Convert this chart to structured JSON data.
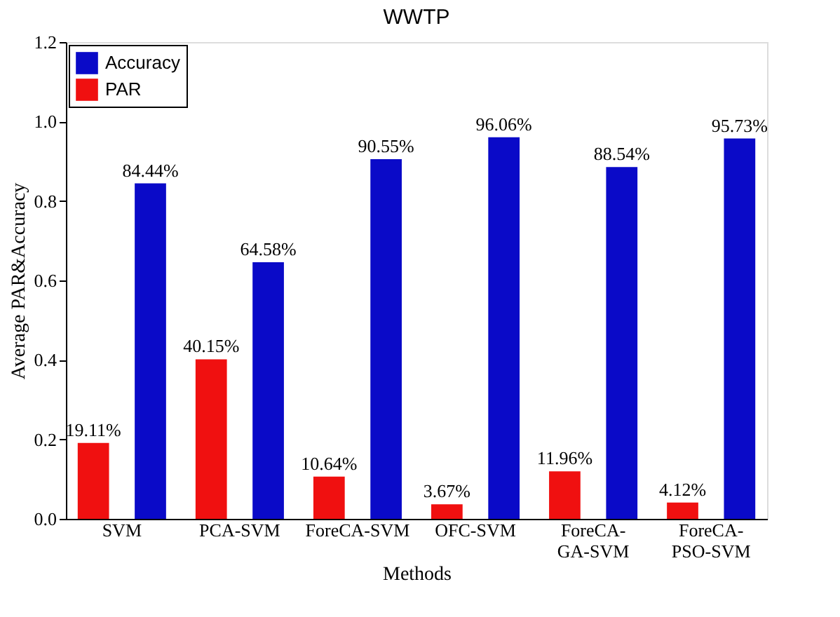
{
  "chart_data": {
    "type": "bar",
    "title": "WWTP",
    "xlabel": "Methods",
    "ylabel": "Average PAR&Accuracy",
    "categories": [
      "SVM",
      "PCA-SVM",
      "ForeCA-SVM",
      "OFC-SVM",
      "ForeCA-GA-SVM",
      "ForeCA-PSO-SVM"
    ],
    "series": [
      {
        "name": "Accuracy",
        "color": "#0a0ac8",
        "values": [
          0.8444,
          0.6458,
          0.9055,
          0.9606,
          0.8854,
          0.9573
        ],
        "value_labels": [
          "84.44%",
          "64.58%",
          "90.55%",
          "96.06%",
          "88.54%",
          "95.73%"
        ]
      },
      {
        "name": "PAR",
        "color": "#f01010",
        "values": [
          0.1911,
          0.4015,
          0.1064,
          0.0367,
          0.1196,
          0.0412
        ],
        "value_labels": [
          "19.11%",
          "40.15%",
          "10.64%",
          "3.67%",
          "11.96%",
          "4.12%"
        ]
      }
    ],
    "ylim": [
      0,
      1.2
    ],
    "yticks": [
      {
        "value": 0,
        "label": "0.0"
      },
      {
        "value": 0.2,
        "label": "0.2"
      },
      {
        "value": 0.4,
        "label": "0.4"
      },
      {
        "value": 0.6,
        "label": "0.6"
      },
      {
        "value": 0.8,
        "label": "0.8"
      },
      {
        "value": 1,
        "label": "1.0"
      },
      {
        "value": 1.2,
        "label": "1.2"
      }
    ],
    "legend": "top left",
    "grid": false
  }
}
